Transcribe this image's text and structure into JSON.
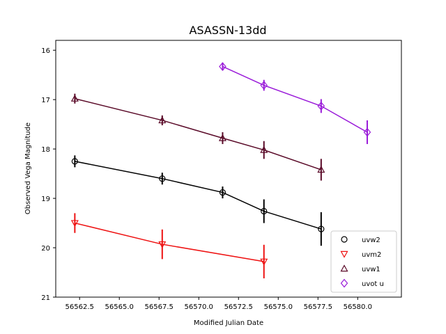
{
  "chart_data": {
    "type": "scatter",
    "title": "ASASSN-13dd",
    "xlabel": "Modified Julian Date",
    "ylabel": "Observed Vega Magnitude",
    "xlim": [
      56561.0,
      56582.75
    ],
    "ylim": [
      21,
      15.8
    ],
    "y_inverted": true,
    "x_ticks": [
      56562.5,
      56565.0,
      56567.5,
      56570.0,
      56572.5,
      56575.0,
      56577.5,
      56580.0
    ],
    "x_tick_labels": [
      "56562.5",
      "56565.0",
      "56567.5",
      "56570.0",
      "56572.5",
      "56575.0",
      "56577.5",
      "56580.0"
    ],
    "y_ticks": [
      16,
      17,
      18,
      19,
      20,
      21
    ],
    "y_tick_labels": [
      "16",
      "17",
      "18",
      "19",
      "20",
      "21"
    ],
    "grid": false,
    "legend_position": "lower-right",
    "series": [
      {
        "name": "uvw2",
        "color": "#000000",
        "marker": "circle",
        "x": [
          56562.2,
          56567.7,
          56571.5,
          56574.1,
          56577.7
        ],
        "y": [
          18.25,
          18.6,
          18.88,
          19.26,
          19.62
        ],
        "yerr": [
          0.12,
          0.12,
          0.12,
          0.24,
          0.34
        ]
      },
      {
        "name": "uvm2",
        "color": "#ee1111",
        "marker": "triangle-down",
        "x": [
          56562.2,
          56567.7,
          56574.1
        ],
        "y": [
          19.5,
          19.93,
          20.28
        ],
        "yerr": [
          0.2,
          0.3,
          0.34
        ]
      },
      {
        "name": "uvw1",
        "color": "#5a0a28",
        "marker": "triangle-up",
        "x": [
          56562.2,
          56567.7,
          56571.5,
          56574.1,
          56577.7
        ],
        "y": [
          16.98,
          17.42,
          17.78,
          18.02,
          18.42
        ],
        "yerr": [
          0.1,
          0.1,
          0.12,
          0.18,
          0.22
        ]
      },
      {
        "name": "uvot u",
        "color": "#9a1bd9",
        "marker": "diamond",
        "x": [
          56571.5,
          56574.1,
          56577.7,
          56580.6
        ],
        "y": [
          16.33,
          16.71,
          17.13,
          17.66
        ],
        "yerr": [
          0.08,
          0.11,
          0.14,
          0.24
        ]
      }
    ]
  }
}
